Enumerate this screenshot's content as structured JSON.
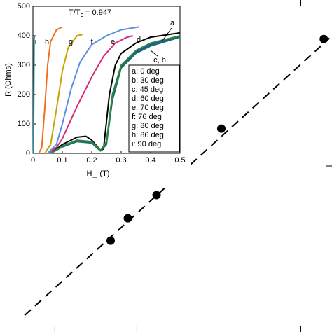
{
  "chart_data": [
    {
      "type": "line",
      "title_parts": [
        "T/T",
        "c",
        " = 0.947"
      ],
      "xlabel_parts": [
        "H",
        "⊥",
        " (T)"
      ],
      "ylabel": "R (Ohms)",
      "xlim": [
        0,
        0.5
      ],
      "xticks": [
        0,
        0.1,
        0.2,
        0.3,
        0.4,
        0.5
      ],
      "ylim": [
        0,
        500
      ],
      "yticks": [
        0,
        100,
        200,
        300,
        400,
        500
      ],
      "curve_labels": [
        "a",
        "c, b",
        "d",
        "e",
        "f",
        "g",
        "h",
        "i"
      ],
      "series": [
        {
          "name": "a: 0 deg",
          "color": "#000000",
          "x": [
            0.06,
            0.1,
            0.15,
            0.18,
            0.2,
            0.23,
            0.24,
            0.26,
            0.28,
            0.3,
            0.35,
            0.4,
            0.5
          ],
          "values": [
            0,
            30,
            55,
            58,
            45,
            10,
            15,
            200,
            300,
            340,
            375,
            395,
            410
          ]
        },
        {
          "name": "b: 30 deg",
          "color": "#2050a0",
          "x": [
            0.06,
            0.1,
            0.15,
            0.2,
            0.23,
            0.25,
            0.27,
            0.3,
            0.35,
            0.4,
            0.5
          ],
          "values": [
            0,
            22,
            42,
            36,
            8,
            35,
            190,
            295,
            345,
            370,
            398
          ]
        },
        {
          "name": "c: 45 deg",
          "color": "#1f6e6e",
          "x": [
            0.06,
            0.1,
            0.15,
            0.2,
            0.23,
            0.25,
            0.27,
            0.3,
            0.35,
            0.4,
            0.5
          ],
          "values": [
            0,
            22,
            40,
            35,
            8,
            30,
            180,
            290,
            340,
            365,
            395
          ]
        },
        {
          "name": "d: 60 deg",
          "color": "#2c8a3c",
          "x": [
            0.06,
            0.1,
            0.15,
            0.2,
            0.23,
            0.25,
            0.27,
            0.3,
            0.35,
            0.4,
            0.5
          ],
          "values": [
            0,
            25,
            45,
            40,
            10,
            40,
            200,
            300,
            350,
            375,
            400
          ]
        },
        {
          "name": "e: 70 deg",
          "color": "#d42a7a",
          "x": [
            0.05,
            0.08,
            0.1,
            0.15,
            0.2,
            0.24,
            0.28,
            0.32,
            0.34
          ],
          "values": [
            0,
            20,
            50,
            160,
            260,
            330,
            375,
            395,
            400
          ]
        },
        {
          "name": "f: 76 deg",
          "color": "#5b8ee6",
          "x": [
            0.05,
            0.08,
            0.1,
            0.13,
            0.16,
            0.2,
            0.25,
            0.3,
            0.36
          ],
          "values": [
            0,
            30,
            100,
            220,
            310,
            370,
            400,
            420,
            430
          ]
        },
        {
          "name": "g: 80 deg",
          "color": "#c8a400",
          "x": [
            0.04,
            0.06,
            0.08,
            0.1,
            0.12,
            0.15,
            0.17
          ],
          "values": [
            0,
            30,
            150,
            280,
            360,
            400,
            405
          ]
        },
        {
          "name": "h: 86 deg",
          "color": "#f07020",
          "x": [
            0.02,
            0.03,
            0.04,
            0.05,
            0.06,
            0.08,
            0.1
          ],
          "values": [
            0,
            20,
            150,
            300,
            380,
            420,
            430
          ]
        },
        {
          "name": "i: 90 deg",
          "color": "#1f8fa0",
          "x": [
            0,
            0.002,
            0.004,
            0.006
          ],
          "values": [
            0,
            10,
            390,
            400
          ]
        }
      ]
    },
    {
      "type": "scatter",
      "xlim": [
        0.33,
        4.38
      ],
      "xticks": [
        1,
        2,
        3,
        4
      ],
      "ylim": [
        0,
        4
      ],
      "yticks": [
        1,
        2,
        3
      ],
      "series": [
        {
          "color": "#000000",
          "x": [
            1.68,
            1.89,
            2.24,
            3.03,
            4.28
          ],
          "values": [
            1.1,
            1.37,
            1.65,
            2.45,
            3.53
          ]
        },
        {
          "color": "#000000",
          "style": "dashed",
          "x": [
            0.63,
            4.35
          ],
          "values": [
            0.2,
            3.54
          ]
        }
      ]
    }
  ]
}
